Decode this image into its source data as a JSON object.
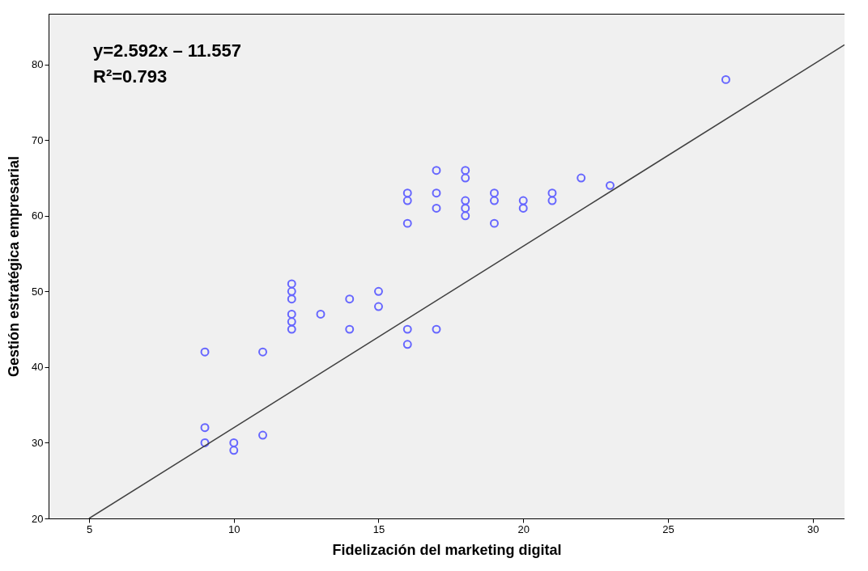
{
  "chart_data": {
    "type": "scatter",
    "xlabel": "Fidelización del marketing digital",
    "ylabel": "Gestión estratégica empresarial",
    "xlim": [
      3.6,
      31.1
    ],
    "ylim": [
      20,
      86.7
    ],
    "xticks": [
      5,
      10,
      15,
      20,
      25,
      30
    ],
    "yticks": [
      20,
      30,
      40,
      50,
      60,
      70,
      80
    ],
    "grid": false,
    "annotations": [
      "y=2.592x – 11.557",
      "R²=0.793"
    ],
    "series": [
      {
        "marker": "circle",
        "color": "#6666ff",
        "x": [
          9,
          9,
          9,
          10,
          10,
          11,
          11,
          12,
          12,
          12,
          12,
          12,
          12,
          13,
          14,
          14,
          15,
          15,
          16,
          16,
          16,
          16,
          16,
          17,
          17,
          17,
          17,
          18,
          18,
          18,
          18,
          18,
          19,
          19,
          19,
          20,
          20,
          21,
          21,
          22,
          23,
          27
        ],
        "values": [
          42,
          32,
          30,
          30,
          29,
          42,
          31,
          51,
          50,
          49,
          47,
          46,
          45,
          47,
          49,
          45,
          50,
          48,
          63,
          62,
          59,
          45,
          43,
          66,
          63,
          61,
          45,
          66,
          65,
          62,
          61,
          60,
          63,
          62,
          59,
          62,
          61,
          63,
          62,
          65,
          64,
          78
        ]
      },
      {
        "type": "line",
        "color": "#404040",
        "x": [
          5,
          31.1
        ],
        "values": [
          20,
          82.6
        ]
      }
    ]
  }
}
